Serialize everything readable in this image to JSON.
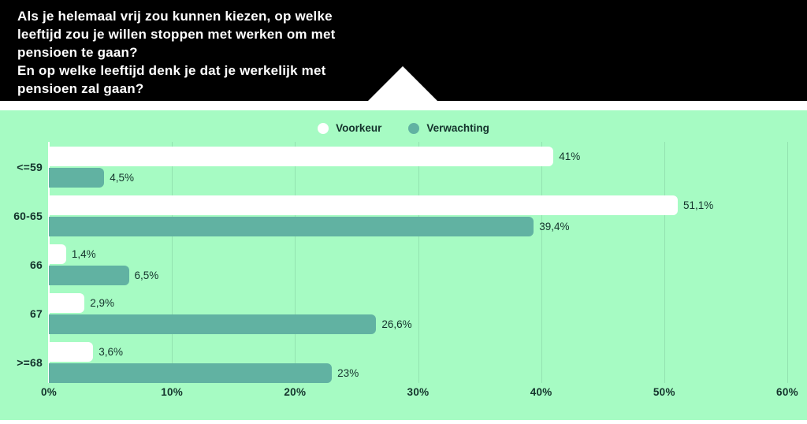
{
  "header": {
    "question_1": "Als je helemaal vrij zou kunnen kiezen, op welke\nleeftijd zou je willen stoppen met werken om met\npensioen te gaan?",
    "question_2": "En op welke leeftijd denk je dat je werkelijk met\npensioen zal gaan?"
  },
  "colors": {
    "header_bg": "#000000",
    "header_text": "#ffffff",
    "panel_bg": "#a6fbc3",
    "text": "#14332c",
    "gridline": "rgba(20,51,44,0.12)",
    "axis_line": "#ffffff"
  },
  "chart_data": {
    "type": "bar",
    "orientation": "horizontal",
    "categories": [
      "<=59",
      "60-65",
      "66",
      "67",
      ">=68"
    ],
    "series": [
      {
        "name": "Voorkeur",
        "color": "#ffffff",
        "values": [
          41,
          51.1,
          1.4,
          2.9,
          3.6
        ],
        "labels": [
          "41%",
          "51,1%",
          "1,4%",
          "2,9%",
          "3,6%"
        ]
      },
      {
        "name": "Verwachting",
        "color": "#61b2a2",
        "values": [
          4.5,
          39.4,
          6.5,
          26.6,
          23
        ],
        "labels": [
          "4,5%",
          "39,4%",
          "6,5%",
          "26,6%",
          "23%"
        ]
      }
    ],
    "x_ticks": [
      "0%",
      "10%",
      "20%",
      "30%",
      "40%",
      "50%",
      "60%"
    ],
    "xlim": [
      0,
      60
    ],
    "grid": true,
    "legend_position": "top-center",
    "title": "",
    "xlabel": "",
    "ylabel": ""
  }
}
